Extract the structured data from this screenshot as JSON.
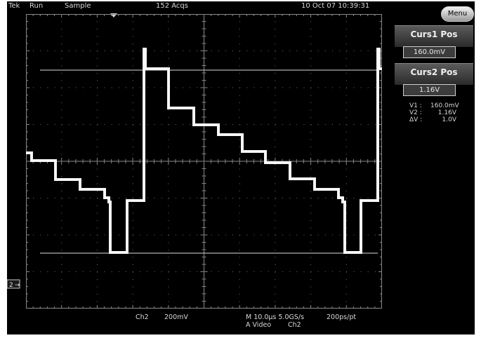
{
  "status_bar": {
    "brand": "Tek",
    "run_state": "Run",
    "acq_mode": "Sample",
    "acq_count": "152 Acqs",
    "datetime": "10 Oct 07 10:39:31",
    "menu_label": "Menu"
  },
  "side_panel": {
    "curs1_title": "Curs1 Pos",
    "curs1_value": "160.0mV",
    "curs2_title": "Curs2 Pos",
    "curs2_value": "1.16V",
    "readouts": [
      {
        "label": "V1 :",
        "value": "160.0mV"
      },
      {
        "label": "V2 :",
        "value": "1.16V"
      },
      {
        "label": "ΔV :",
        "value": "1.0V"
      }
    ]
  },
  "bottom_readout": {
    "channel": "Ch2",
    "volts_per_div": "200mV",
    "timebase": "M 10.0µs 5.0GS/s",
    "record": "200ps/pt",
    "trigger_type": "A  Video",
    "trigger_source": "Ch2"
  },
  "channel_marker": "2",
  "colors": {
    "screen_bg": "#000000",
    "trace": "#f4f4f4",
    "graticule": "#8a8a8a",
    "text": "#d8d8d8"
  }
}
